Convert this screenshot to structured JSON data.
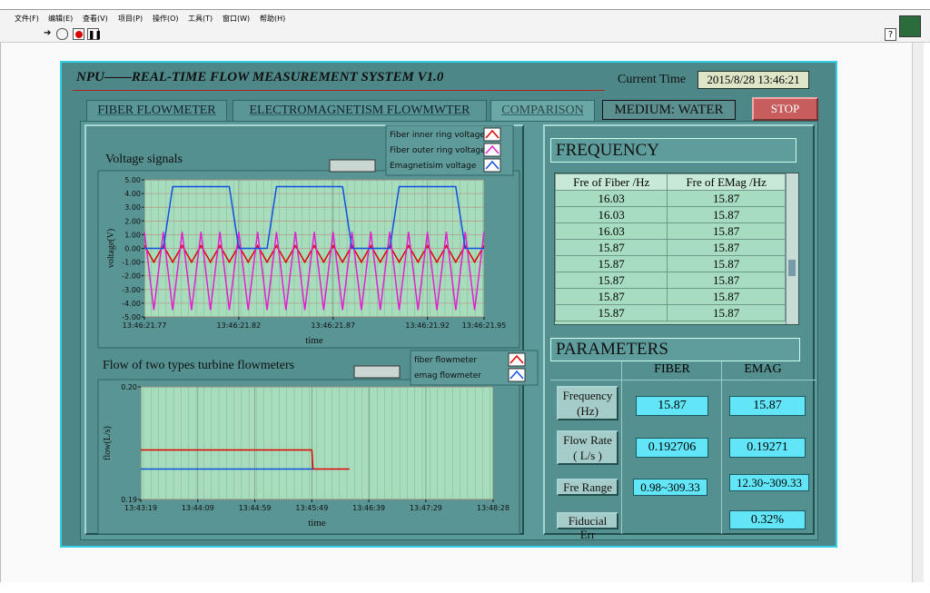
{
  "menu": [
    "文件(F)",
    "编辑(E)",
    "查看(V)",
    "项目(P)",
    "操作(O)",
    "工具(T)",
    "窗口(W)",
    "帮助(H)"
  ],
  "help": "?",
  "panel": {
    "title": "NPU——REAL-TIME FLOW MEASUREMENT SYSTEM V1.0",
    "current_time_label": "Current Time",
    "current_time": "2015/8/28 13:46:21",
    "tabs": [
      "FIBER FLOWMETER",
      "ELECTROMAGNETISM FLOWMWTER",
      "COMPARISON"
    ],
    "medium": "MEDIUM: WATER",
    "stop": "STOP"
  },
  "chart_data": [
    {
      "type": "line",
      "title": "Voltage signals",
      "x_label": "time",
      "y_label": "voltage(V)",
      "x": [
        49581.77,
        49581.775,
        49581.78,
        49581.785,
        49581.79,
        49581.795,
        49581.8,
        49581.805,
        49581.81,
        49581.815,
        49581.82,
        49581.825,
        49581.83,
        49581.835,
        49581.84,
        49581.845,
        49581.85,
        49581.855,
        49581.86,
        49581.865,
        49581.87,
        49581.875,
        49581.88,
        49581.885,
        49581.89,
        49581.895,
        49581.9,
        49581.905,
        49581.91,
        49581.915,
        49581.92,
        49581.925,
        49581.93,
        49581.935,
        49581.94,
        49581.945,
        49581.95
      ],
      "xlim": [
        49581.77,
        49581.95
      ],
      "xticks": [
        {
          "value": 49581.77,
          "label": "13:46:21.77"
        },
        {
          "value": 49581.82,
          "label": "13:46:21.82"
        },
        {
          "value": 49581.87,
          "label": "13:46:21.87"
        },
        {
          "value": 49581.92,
          "label": "13:46:21.92"
        },
        {
          "value": 49581.95,
          "label": "13:46:21.95"
        }
      ],
      "ylim": [
        -5,
        5
      ],
      "yticks": [
        {
          "value": 5,
          "label": "5.00"
        },
        {
          "value": 4,
          "label": "4.00"
        },
        {
          "value": 3,
          "label": "3.00"
        },
        {
          "value": 2,
          "label": "2.00"
        },
        {
          "value": 1,
          "label": "1.00"
        },
        {
          "value": 0,
          "label": "0.00"
        },
        {
          "value": -1,
          "label": "-1.00"
        },
        {
          "value": -2,
          "label": "-2.00"
        },
        {
          "value": -3,
          "label": "-3.00"
        },
        {
          "value": -4,
          "label": "-4.00"
        },
        {
          "value": -5,
          "label": "-5.00"
        }
      ],
      "grid": true,
      "series": [
        {
          "name": "Fiber inner ring voltage",
          "color": "#e00000",
          "values": [
            0.2,
            -1.0,
            0.2,
            -1.0,
            0.2,
            -1.0,
            0.2,
            -1.0,
            0.2,
            -1.0,
            0.2,
            -1.0,
            0.2,
            -1.0,
            0.2,
            -1.0,
            0.2,
            -1.0,
            0.2,
            -1.0,
            0.2,
            -1.0,
            0.2,
            -1.0,
            0.2,
            -1.0,
            0.2,
            -1.0,
            0.2,
            -1.0,
            0.2,
            -1.0,
            0.2,
            -1.0,
            0.2,
            -1.0,
            0.2
          ]
        },
        {
          "name": "Fiber outer ring voltage",
          "color": "#e020d0",
          "values": [
            1.2,
            -4.5,
            1.2,
            -4.5,
            1.2,
            -4.5,
            1.2,
            -4.5,
            1.2,
            -4.5,
            1.2,
            -4.5,
            1.2,
            -4.5,
            1.2,
            -4.5,
            1.2,
            -4.5,
            1.2,
            -4.5,
            1.2,
            -4.5,
            1.2,
            -4.5,
            1.2,
            -4.5,
            1.2,
            -4.5,
            1.2,
            -4.5,
            1.2,
            -4.5,
            1.2,
            -4.5,
            1.2,
            -4.5,
            1.2
          ]
        },
        {
          "name": "Emagnetisim voltage",
          "color": "#1050e0",
          "values": [
            0,
            0,
            0,
            4.5,
            4.5,
            4.5,
            4.5,
            4.5,
            4.5,
            4.5,
            0,
            0,
            0,
            0,
            4.5,
            4.5,
            4.5,
            4.5,
            4.5,
            4.5,
            4.5,
            4.5,
            0,
            0,
            0,
            0,
            0,
            4.5,
            4.5,
            4.5,
            4.5,
            4.5,
            4.5,
            4.5,
            0,
            0,
            0
          ]
        }
      ]
    },
    {
      "type": "line",
      "title": "Flow  of two types turbine flowmeters",
      "x_label": "time",
      "y_label": "flow(L/s)",
      "xlim": [
        49399,
        49708
      ],
      "xticks": [
        {
          "value": 49399,
          "label": "13:43:19"
        },
        {
          "value": 49449,
          "label": "13:44:09"
        },
        {
          "value": 49499,
          "label": "13:44:59"
        },
        {
          "value": 49549,
          "label": "13:45:49"
        },
        {
          "value": 49599,
          "label": "13:46:39"
        },
        {
          "value": 49649,
          "label": "13:47:29"
        },
        {
          "value": 49708,
          "label": "13:48:28"
        }
      ],
      "ylim": [
        0.19,
        0.2
      ],
      "yticks": [
        {
          "value": 0.2,
          "label": "0.20"
        },
        {
          "value": 0.19,
          "label": "0.19"
        }
      ],
      "grid": true,
      "series": [
        {
          "name": "fiber flowmeter",
          "color": "#e00000",
          "x": [
            49399,
            49549,
            49550,
            49582
          ],
          "values": [
            0.1944,
            0.1944,
            0.1927,
            0.1927
          ]
        },
        {
          "name": "emag flowmeter",
          "color": "#1050e0",
          "x": [
            49399,
            49550
          ],
          "values": [
            0.1927,
            0.1927
          ]
        }
      ]
    }
  ],
  "frequency": {
    "title": "FREQUENCY",
    "columns": [
      "Fre of Fiber /Hz",
      "Fre of EMag /Hz"
    ],
    "rows": [
      [
        "16.03",
        "15.87"
      ],
      [
        "16.03",
        "15.87"
      ],
      [
        "16.03",
        "15.87"
      ],
      [
        "15.87",
        "15.87"
      ],
      [
        "15.87",
        "15.87"
      ],
      [
        "15.87",
        "15.87"
      ],
      [
        "15.87",
        "15.87"
      ],
      [
        "15.87",
        "15.87"
      ]
    ]
  },
  "parameters": {
    "title": "PARAMETERS",
    "columns": [
      "FIBER",
      "EMAG"
    ],
    "rows": [
      {
        "label": "Frequency (Hz)",
        "fiber": "15.87",
        "emag": "15.87"
      },
      {
        "label": "Flow Rate ( L/s )",
        "fiber": "0.192706",
        "emag": "0.19271"
      },
      {
        "label": "Fre Range",
        "fiber": "0.98~309.33",
        "emag": "12.30~309.33"
      },
      {
        "label": "Fiducial Err",
        "emag": "0.32%"
      }
    ]
  }
}
